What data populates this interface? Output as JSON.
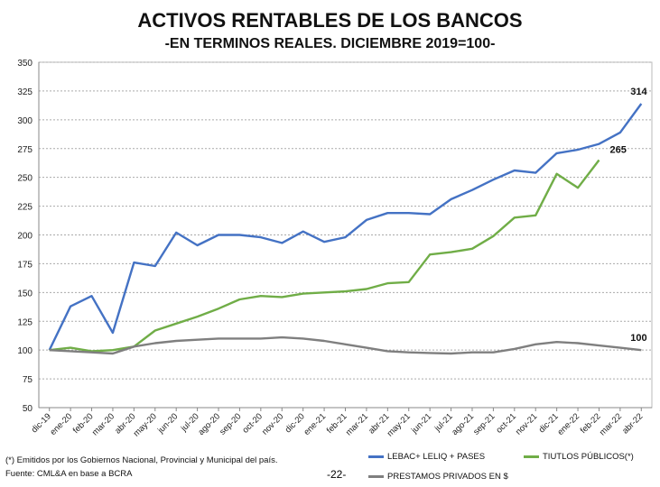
{
  "chart_data": {
    "type": "line",
    "title": "ACTIVOS RENTABLES DE LOS BANCOS",
    "subtitle": "-EN TERMINOS REALES. DICIEMBRE 2019=100-",
    "xlabel": "",
    "ylabel": "",
    "ylim": [
      50,
      350
    ],
    "yticks": [
      50,
      75,
      100,
      125,
      150,
      175,
      200,
      225,
      250,
      275,
      300,
      325,
      350
    ],
    "grid": "horizontal dotted",
    "legend": "bottom",
    "categories": [
      "dic-19",
      "ene-20",
      "feb-20",
      "mar-20",
      "abr-20",
      "may-20",
      "jun-20",
      "jul-20",
      "ago-20",
      "sep-20",
      "oct-20",
      "nov-20",
      "dic-20",
      "ene-21",
      "feb-21",
      "mar-21",
      "abr-21",
      "may-21",
      "jun-21",
      "jul-21",
      "ago-21",
      "sep-21",
      "oct-21",
      "nov-21",
      "dic-21",
      "ene-22",
      "feb-22",
      "mar-22",
      "abr-22"
    ],
    "series": [
      {
        "name": "LEBAC+ LELIQ + PASES",
        "color": "#4472C4",
        "end_label": "314",
        "values": [
          100,
          138,
          147,
          115,
          176,
          173,
          202,
          191,
          200,
          200,
          198,
          193,
          203,
          194,
          198,
          213,
          219,
          219,
          218,
          231,
          239,
          248,
          256,
          254,
          271,
          274,
          279,
          289,
          314
        ]
      },
      {
        "name": "TIUTLOS PÚBLICOS(*)",
        "color": "#70AD47",
        "end_label": "265",
        "values": [
          100,
          102,
          99,
          100,
          103,
          117,
          123,
          129,
          136,
          144,
          147,
          146,
          149,
          150,
          151,
          153,
          158,
          159,
          183,
          185,
          188,
          199,
          215,
          217,
          253,
          241,
          265,
          null,
          null
        ]
      },
      {
        "name": "PRESTAMOS PRIVADOS EN $",
        "color": "#7F7F7F",
        "end_label": "100",
        "values": [
          100,
          99,
          98,
          97,
          103,
          106,
          108,
          109,
          110,
          110,
          110,
          111,
          110,
          108,
          105,
          102,
          99,
          98,
          97.5,
          97,
          98,
          98,
          101,
          105,
          107,
          106,
          104,
          102,
          100
        ]
      }
    ]
  },
  "notes": {
    "footnote": "(*) Emitidos por los Gobiernos Nacional, Provincial y Municipal del país.",
    "source": "Fuente: CML&A en base a BCRA"
  },
  "page_number": "-22-"
}
